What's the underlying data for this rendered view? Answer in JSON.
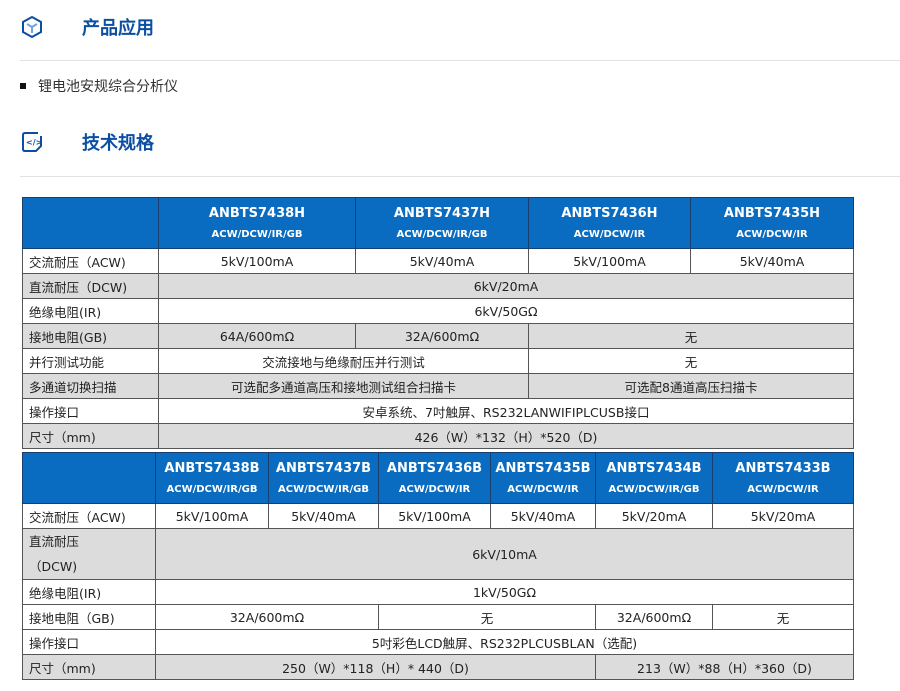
{
  "section1": {
    "title": "产品应用",
    "icon": "cube-icon"
  },
  "applications": [
    "锂电池安规综合分析仪"
  ],
  "section2": {
    "title": "技术规格",
    "icon": "code-document-icon"
  },
  "table1": {
    "models": [
      {
        "name": "ANBTS7438H",
        "functions": "ACW/DCW/IR/GB"
      },
      {
        "name": "ANBTS7437H",
        "functions": "ACW/DCW/IR/GB"
      },
      {
        "name": "ANBTS7436H",
        "functions": "ACW/DCW/IR"
      },
      {
        "name": "ANBTS7435H",
        "functions": "ACW/DCW/IR"
      }
    ],
    "rows": {
      "acw": {
        "label": "交流耐压（ACW)",
        "values": [
          "5kV/100mA",
          "5kV/40mA",
          "5kV/100mA",
          "5kV/40mA"
        ]
      },
      "dcw": {
        "label": "直流耐压（DCW)",
        "value": "6kV/20mA"
      },
      "ir": {
        "label": "绝缘电阻(IR)",
        "value": "6kV/50GΩ"
      },
      "gb": {
        "label": "接地电阻(GB)",
        "values": [
          "64A/600mΩ",
          "32A/600mΩ",
          "无"
        ]
      },
      "parallel": {
        "label": "并行测试功能",
        "values": [
          "交流接地与绝缘耐压并行测试",
          "无"
        ]
      },
      "scan": {
        "label": "多通道切换扫描",
        "values": [
          "可选配多通道高压和接地测试组合扫描卡",
          "可选配8通道高压扫描卡"
        ]
      },
      "interface": {
        "label": "操作接口",
        "value": "安卓系统、7吋触屏、RS232LANWIFIPLCUSB接口"
      },
      "size": {
        "label": "尺寸（mm)",
        "value": "426（W）*132（H）*520（D)"
      }
    }
  },
  "table2": {
    "models": [
      {
        "name": "ANBTS7438B",
        "functions": "ACW/DCW/IR/GB"
      },
      {
        "name": "ANBTS7437B",
        "functions": "ACW/DCW/IR/GB"
      },
      {
        "name": "ANBTS7436B",
        "functions": "ACW/DCW/IR"
      },
      {
        "name": "ANBTS7435B",
        "functions": "ACW/DCW/IR"
      },
      {
        "name": "ANBTS7434B",
        "functions": "ACW/DCW/IR/GB"
      },
      {
        "name": "ANBTS7433B",
        "functions": "ACW/DCW/IR"
      }
    ],
    "rows": {
      "acw": {
        "label": "交流耐压（ACW)",
        "values": [
          "5kV/100mA",
          "5kV/40mA",
          "5kV/100mA",
          "5kV/40mA",
          "5kV/20mA",
          "5kV/20mA"
        ]
      },
      "dcw": {
        "label": "直流耐压（DCW)",
        "value": "6kV/10mA"
      },
      "ir": {
        "label": "绝缘电阻(IR)",
        "value": "1kV/50GΩ"
      },
      "gb": {
        "label": "接地电阻（GB)",
        "values": [
          "32A/600mΩ",
          "无",
          "32A/600mΩ",
          "无"
        ]
      },
      "interface": {
        "label": "操作接口",
        "value": "5吋彩色LCD触屏、RS232PLCUSBLAN（选配)"
      },
      "size": {
        "label": "尺寸（mm)",
        "values": [
          "250（W）*118（H）* 440（D)",
          "213（W）*88（H）*360（D)"
        ]
      }
    }
  },
  "colors": {
    "accent": "#0b4ea2",
    "header_bg": "#0a6cc0",
    "alt_row": "#dcdcdc"
  }
}
